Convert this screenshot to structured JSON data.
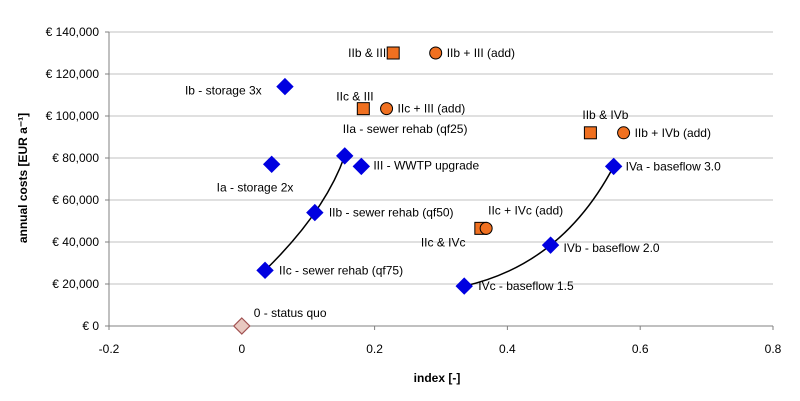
{
  "chart_data": {
    "type": "scatter",
    "title": "",
    "xlabel": "index [-]",
    "ylabel": "annual costs [EUR a⁻¹]",
    "xlim": [
      -0.2,
      0.8
    ],
    "ylim": [
      0,
      140000
    ],
    "x_ticks": [
      "-0.2",
      "0",
      "0.2",
      "0.4",
      "0.6",
      "0.8"
    ],
    "y_ticks": [
      "€ 0",
      "€ 20,000",
      "€ 40,000",
      "€ 60,000",
      "€ 80,000",
      "€ 100,000",
      "€ 120,000",
      "€ 140,000"
    ],
    "grid": "horizontal",
    "colors": {
      "diamond": "#0000e0",
      "orange": "#f07020",
      "status_quo": "#e8c8c0",
      "status_quo_edge": "#a05050",
      "curve": "#000000",
      "grid": "#c0c0c0"
    },
    "series": [
      {
        "marker": "diamond",
        "points": [
          {
            "label": "0 - status quo",
            "x": 0.0,
            "y": 0,
            "style": "status_quo"
          },
          {
            "label": "Ia - storage 2x",
            "x": 0.045,
            "y": 77000
          },
          {
            "label": "Ib - storage 3x",
            "x": 0.065,
            "y": 114000
          },
          {
            "label": "IIa - sewer rehab (qf25)",
            "x": 0.155,
            "y": 81000
          },
          {
            "label": "IIb - sewer rehab (qf50)",
            "x": 0.11,
            "y": 54000
          },
          {
            "label": "IIc - sewer rehab (qf75)",
            "x": 0.035,
            "y": 26500
          },
          {
            "label": "III - WWTP upgrade",
            "x": 0.18,
            "y": 76000
          },
          {
            "label": "IVa - baseflow 3.0",
            "x": 0.56,
            "y": 76000
          },
          {
            "label": "IVb - baseflow 2.0",
            "x": 0.465,
            "y": 38500
          },
          {
            "label": "IVc - baseflow 1.5",
            "x": 0.335,
            "y": 19000
          }
        ]
      },
      {
        "marker": "square",
        "points": [
          {
            "label": "IIb & III",
            "x": 0.228,
            "y": 130000
          },
          {
            "label": "IIc & III",
            "x": 0.183,
            "y": 103500
          },
          {
            "label": "IIb & IVb",
            "x": 0.525,
            "y": 92000
          },
          {
            "label": "IIc & IVc",
            "x": 0.36,
            "y": 46500
          }
        ]
      },
      {
        "marker": "circle",
        "points": [
          {
            "label": "IIb + III (add)",
            "x": 0.292,
            "y": 130000
          },
          {
            "label": "IIc + III (add)",
            "x": 0.218,
            "y": 103500
          },
          {
            "label": "IIb + IVb (add)",
            "x": 0.575,
            "y": 92000
          },
          {
            "label": "IIc + IVc (add)",
            "x": 0.368,
            "y": 46500
          }
        ]
      }
    ],
    "curves": [
      {
        "x": [
          0.035,
          0.11,
          0.155
        ],
        "y": [
          26500,
          54000,
          81000
        ]
      },
      {
        "x": [
          0.335,
          0.465,
          0.56
        ],
        "y": [
          19000,
          38500,
          76000
        ]
      }
    ]
  }
}
